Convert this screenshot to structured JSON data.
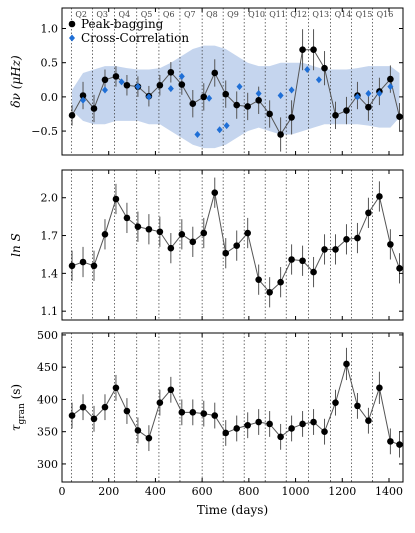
{
  "quarters": {
    "labels": [
      "Q2",
      "Q3",
      "Q4",
      "Q5",
      "Q6",
      "Q7",
      "Q8",
      "Q9",
      "Q10",
      "Q11",
      "Q12",
      "Q13",
      "Q14",
      "Q15",
      "Q16"
    ],
    "x": [
      40,
      130,
      225,
      320,
      415,
      505,
      600,
      690,
      780,
      870,
      960,
      1055,
      1150,
      1240,
      1330
    ]
  },
  "chart_data": [
    {
      "type": "line",
      "ylabel": "δν (μHz)",
      "xlim": [
        0,
        1460
      ],
      "xticks": [
        0,
        200,
        400,
        600,
        800,
        1000,
        1200,
        1400
      ],
      "ylim": [
        -0.85,
        1.3
      ],
      "yticks": [
        {
          "value": -0.5,
          "label": "−0.5"
        },
        {
          "value": 0,
          "label": "0.0"
        },
        {
          "value": 0.5,
          "label": "0.5"
        },
        {
          "value": 1,
          "label": "1.0"
        }
      ],
      "legend": "upper left",
      "band_color": "#c5d5ee",
      "x": [
        43,
        90,
        137,
        184,
        231,
        278,
        325,
        372,
        419,
        466,
        513,
        560,
        607,
        654,
        701,
        748,
        795,
        842,
        889,
        936,
        983,
        1030,
        1077,
        1124,
        1171,
        1218,
        1265,
        1312,
        1359,
        1406,
        1445
      ],
      "band_upper": [
        0.1,
        0.35,
        0.4,
        0.45,
        0.45,
        0.42,
        0.4,
        0.4,
        0.42,
        0.5,
        0.6,
        0.7,
        0.75,
        0.75,
        0.7,
        0.6,
        0.5,
        0.45,
        0.45,
        0.5,
        0.5,
        0.5,
        0.45,
        0.4,
        0.4,
        0.4,
        0.42,
        0.45,
        0.45,
        0.45,
        0.35
      ],
      "band_lower": [
        -0.2,
        -0.35,
        -0.4,
        -0.4,
        -0.35,
        -0.35,
        -0.35,
        -0.4,
        -0.4,
        -0.5,
        -0.6,
        -0.7,
        -0.75,
        -0.75,
        -0.7,
        -0.6,
        -0.5,
        -0.45,
        -0.5,
        -0.55,
        -0.55,
        -0.5,
        -0.45,
        -0.4,
        -0.4,
        -0.4,
        -0.4,
        -0.42,
        -0.45,
        -0.45,
        -0.3
      ],
      "series": [
        {
          "name": "Peak-bagging",
          "color": "#000000",
          "marker": "circle",
          "values": [
            -0.27,
            0.02,
            -0.17,
            0.25,
            0.3,
            0.17,
            0.15,
            0.01,
            0.17,
            0.36,
            0.18,
            -0.1,
            0.0,
            0.35,
            0.04,
            -0.12,
            -0.14,
            -0.05,
            -0.25,
            -0.55,
            -0.3,
            0.69,
            0.69,
            0.42,
            -0.27,
            -0.2,
            0.02,
            -0.15,
            0.08,
            0.26,
            -0.29
          ],
          "errors": [
            0.15,
            0.2,
            0.2,
            0.15,
            0.15,
            0.15,
            0.15,
            0.15,
            0.15,
            0.15,
            0.15,
            0.2,
            0.2,
            0.2,
            0.2,
            0.2,
            0.2,
            0.2,
            0.2,
            0.25,
            0.25,
            0.3,
            0.3,
            0.25,
            0.2,
            0.2,
            0.2,
            0.2,
            0.2,
            0.2,
            0.2
          ]
        },
        {
          "name": "Cross-Correlation",
          "color": "#1f6fd6",
          "marker": "diamond",
          "x": [
            90,
            184,
            255,
            325,
            372,
            466,
            513,
            580,
            630,
            675,
            705,
            760,
            842,
            936,
            983,
            1050,
            1100,
            1265,
            1312,
            1359,
            1406
          ],
          "values": [
            -0.05,
            0.1,
            0.22,
            0.15,
            0.0,
            0.12,
            0.3,
            -0.55,
            -0.02,
            -0.48,
            -0.42,
            0.15,
            0.05,
            0.02,
            0.1,
            0.4,
            0.25,
            0.0,
            0.05,
            0.05,
            0.15
          ]
        }
      ]
    },
    {
      "type": "line",
      "ylabel": "ln S",
      "xlim": [
        0,
        1460
      ],
      "xticks": [
        0,
        200,
        400,
        600,
        800,
        1000,
        1200,
        1400
      ],
      "ylim": [
        1.03,
        2.22
      ],
      "yticks": [
        1.1,
        1.4,
        1.7,
        {
          "value": 2,
          "label": "2.0"
        }
      ],
      "x": [
        43,
        90,
        137,
        184,
        231,
        278,
        325,
        372,
        419,
        466,
        513,
        560,
        607,
        654,
        701,
        748,
        795,
        842,
        889,
        936,
        983,
        1030,
        1077,
        1124,
        1171,
        1218,
        1265,
        1312,
        1359,
        1406,
        1445
      ],
      "series": [
        {
          "name": "ln S",
          "color": "#000000",
          "marker": "circle",
          "values": [
            1.46,
            1.49,
            1.46,
            1.71,
            1.99,
            1.84,
            1.77,
            1.75,
            1.73,
            1.6,
            1.71,
            1.65,
            1.72,
            2.04,
            1.56,
            1.62,
            1.72,
            1.35,
            1.25,
            1.33,
            1.51,
            1.5,
            1.41,
            1.59,
            1.59,
            1.67,
            1.68,
            1.88,
            2.01,
            1.63,
            1.44
          ],
          "errors": [
            0.12,
            0.12,
            0.12,
            0.12,
            0.12,
            0.12,
            0.12,
            0.12,
            0.12,
            0.12,
            0.12,
            0.12,
            0.12,
            0.12,
            0.12,
            0.12,
            0.12,
            0.12,
            0.12,
            0.12,
            0.12,
            0.12,
            0.12,
            0.12,
            0.12,
            0.12,
            0.12,
            0.12,
            0.12,
            0.12,
            0.12
          ]
        }
      ]
    },
    {
      "type": "line",
      "ylabel_parts": [
        "τ",
        "gran",
        " (s)"
      ],
      "xlabel": "Time (days)",
      "xlim": [
        0,
        1460
      ],
      "xticks": [
        0,
        200,
        400,
        600,
        800,
        1000,
        1200,
        1400
      ],
      "ylim": [
        272,
        503
      ],
      "yticks": [
        300,
        350,
        400,
        450,
        500
      ],
      "x": [
        43,
        90,
        137,
        184,
        231,
        278,
        325,
        372,
        419,
        466,
        513,
        560,
        607,
        654,
        701,
        748,
        795,
        842,
        889,
        936,
        983,
        1030,
        1077,
        1124,
        1171,
        1218,
        1265,
        1312,
        1359,
        1406,
        1445
      ],
      "series": [
        {
          "name": "τgran",
          "color": "#000000",
          "marker": "circle",
          "values": [
            375,
            388,
            370,
            388,
            418,
            382,
            352,
            340,
            395,
            415,
            380,
            380,
            378,
            375,
            348,
            355,
            360,
            365,
            362,
            342,
            355,
            362,
            365,
            350,
            395,
            455,
            390,
            367,
            418,
            335,
            330
          ],
          "errors": [
            20,
            20,
            20,
            20,
            20,
            20,
            20,
            20,
            20,
            20,
            20,
            20,
            20,
            20,
            20,
            20,
            20,
            20,
            20,
            20,
            20,
            20,
            20,
            20,
            20,
            25,
            20,
            20,
            25,
            20,
            20
          ]
        }
      ]
    }
  ]
}
